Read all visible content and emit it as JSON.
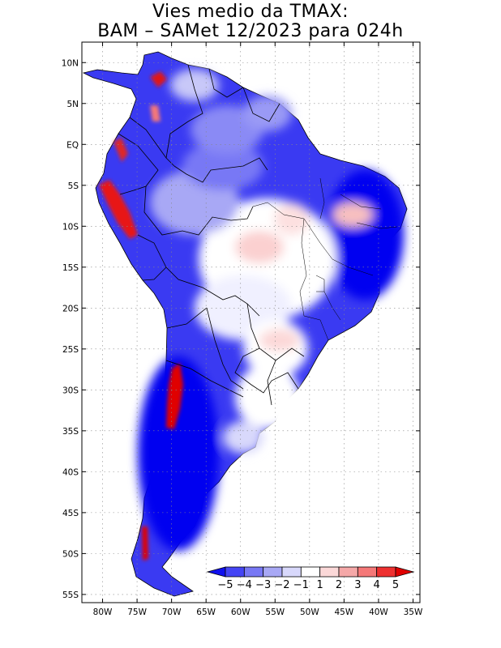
{
  "title_line1": "Vies medio da TMAX:",
  "title_line2": "BAM – SAMet 12/2023  para 024h",
  "map": {
    "lat_labels": [
      "10N",
      "5N",
      "EQ",
      "5S",
      "10S",
      "15S",
      "20S",
      "25S",
      "30S",
      "35S",
      "40S",
      "45S",
      "50S",
      "55S"
    ],
    "lat_values": [
      10,
      5,
      0,
      -5,
      -10,
      -15,
      -20,
      -25,
      -30,
      -35,
      -40,
      -45,
      -50,
      -55
    ],
    "lon_labels": [
      "80W",
      "75W",
      "70W",
      "65W",
      "60W",
      "55W",
      "50W",
      "45W",
      "40W",
      "35W"
    ],
    "lon_values": [
      -80,
      -75,
      -70,
      -65,
      -60,
      -55,
      -50,
      -45,
      -40,
      -35
    ],
    "lon_range": [
      -83,
      -34
    ],
    "lat_range": [
      -56,
      12.5
    ],
    "grid": "dotted"
  },
  "colorbar": {
    "labels": [
      "−5",
      "−4",
      "−3",
      "−2",
      "−1",
      "1",
      "2",
      "3",
      "4",
      "5"
    ],
    "colors": [
      "#1010ee",
      "#4545f5",
      "#7878f5",
      "#a8a8f5",
      "#d8d8fb",
      "#ffffff",
      "#fbd8d8",
      "#f5a8a8",
      "#f57878",
      "#ee3030",
      "#e00000"
    ],
    "placement": "bottom-right"
  }
}
